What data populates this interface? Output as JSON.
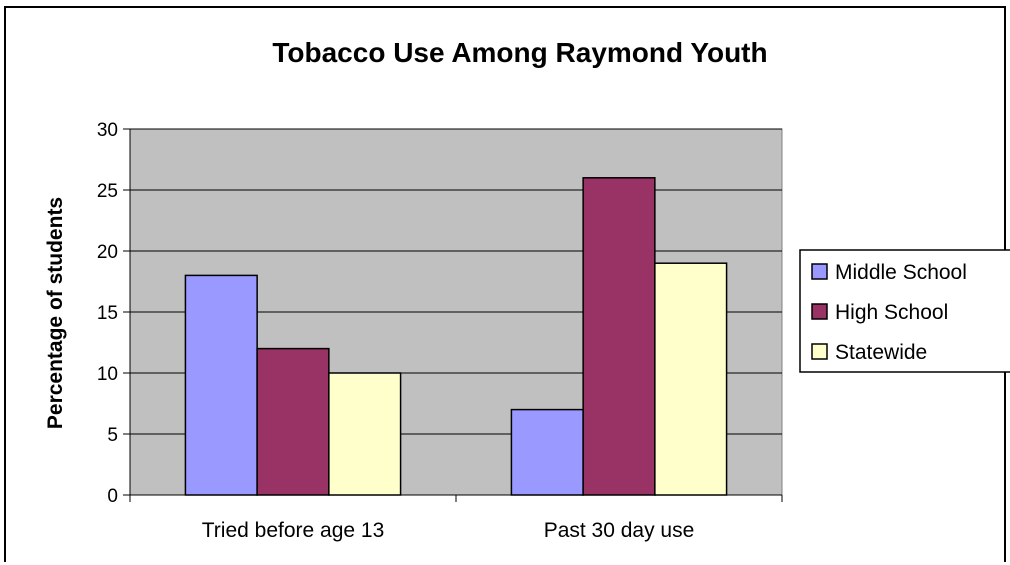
{
  "chart_data": {
    "type": "bar",
    "title": "Tobacco Use Among Raymond Youth",
    "xlabel": "",
    "ylabel": "Percentage of students",
    "ylim": [
      0,
      30
    ],
    "yticks": [
      0,
      5,
      10,
      15,
      20,
      25,
      30
    ],
    "categories": [
      "Tried before age 13",
      "Past 30 day use"
    ],
    "series": [
      {
        "name": "Middle School",
        "values": [
          18,
          7
        ],
        "color": "#9999ff"
      },
      {
        "name": "High School",
        "values": [
          12,
          26
        ],
        "color": "#993366"
      },
      {
        "name": "Statewide",
        "values": [
          10,
          19
        ],
        "color": "#ffffcc"
      }
    ],
    "grid": true,
    "plot_background": "#c0c0c0",
    "legend_position": "right"
  }
}
